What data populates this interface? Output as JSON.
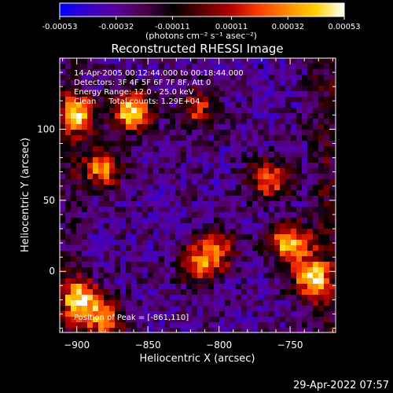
{
  "colorbar": {
    "ticks": [
      "-0.00053",
      "-0.00032",
      "-0.00011",
      "0.00011",
      "0.00032",
      "0.00053"
    ],
    "tick_values": [
      -0.00053,
      -0.00032,
      -0.00011,
      0.00011,
      0.00032,
      0.00053
    ],
    "range": [
      -0.00053,
      0.00053
    ],
    "unit_label": "(photons cm⁻² s⁻¹ asec⁻²)",
    "gradient": [
      "#0000ff",
      "#3a00c8",
      "#5a009a",
      "#4a004a",
      "#000000",
      "#5a0000",
      "#b00000",
      "#ff3c00",
      "#ff8c00",
      "#ffd200",
      "#ffffff"
    ]
  },
  "chart_data": {
    "type": "heatmap",
    "title": "Reconstructed RHESSI Image",
    "xlabel": "Heliocentric X (arcsec)",
    "ylabel": "Heliocentric Y (arcsec)",
    "xlim": [
      -912,
      -718
    ],
    "ylim": [
      -43,
      150
    ],
    "x_ticks": [
      -900,
      -850,
      -800,
      -750
    ],
    "y_ticks": [
      0,
      50,
      100
    ],
    "peak_position": [
      -861,
      110
    ],
    "bright_sources": [
      {
        "x": -861,
        "y": 112,
        "level": 1.0
      },
      {
        "x": -882,
        "y": 73,
        "level": 0.75
      },
      {
        "x": -900,
        "y": 110,
        "level": 0.8
      },
      {
        "x": -750,
        "y": 20,
        "level": 0.9
      },
      {
        "x": -735,
        "y": -5,
        "level": 0.8
      },
      {
        "x": -765,
        "y": 65,
        "level": 0.7
      },
      {
        "x": -815,
        "y": 5,
        "level": 0.65
      },
      {
        "x": -800,
        "y": 15,
        "level": 0.55
      },
      {
        "x": -897,
        "y": -20,
        "level": 0.9
      },
      {
        "x": -880,
        "y": -35,
        "level": 0.7
      },
      {
        "x": -815,
        "y": 115,
        "level": 0.55
      }
    ],
    "annotations": {
      "time_range": "14-Apr-2005 00:12:44.000 to 00:18:44.000",
      "detectors": "Detectors: 3F 4F 5F 6F 7F 8F, Att 0",
      "energy": "Energy Range: 12.0 - 25.0 keV",
      "clean": "Clean     Total counts: 1.29E+04",
      "peak": "Position of Peak = [-861,110]"
    }
  },
  "footer": {
    "timestamp": "29-Apr-2022 07:57"
  }
}
